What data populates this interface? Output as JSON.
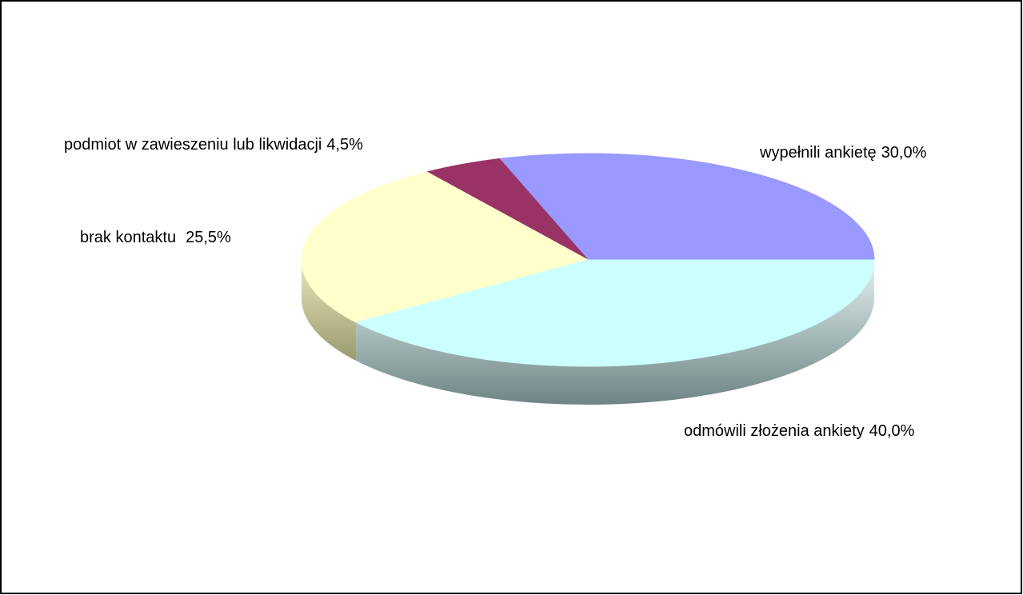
{
  "chart_data": {
    "type": "pie",
    "categories": [
      "wypełnili ankietę",
      "podmiot w zawieszeniu lub likwidacji",
      "brak kontaktu",
      "odmówili złożenia ankiety"
    ],
    "values": [
      30,
      4.5,
      25.5,
      40
    ],
    "value_labels": [
      "30,0%",
      "4,5%",
      "25,5%",
      "40,0%"
    ],
    "colors": [
      "#9999ff",
      "#993366",
      "#ffffcc",
      "#ccffff"
    ]
  }
}
